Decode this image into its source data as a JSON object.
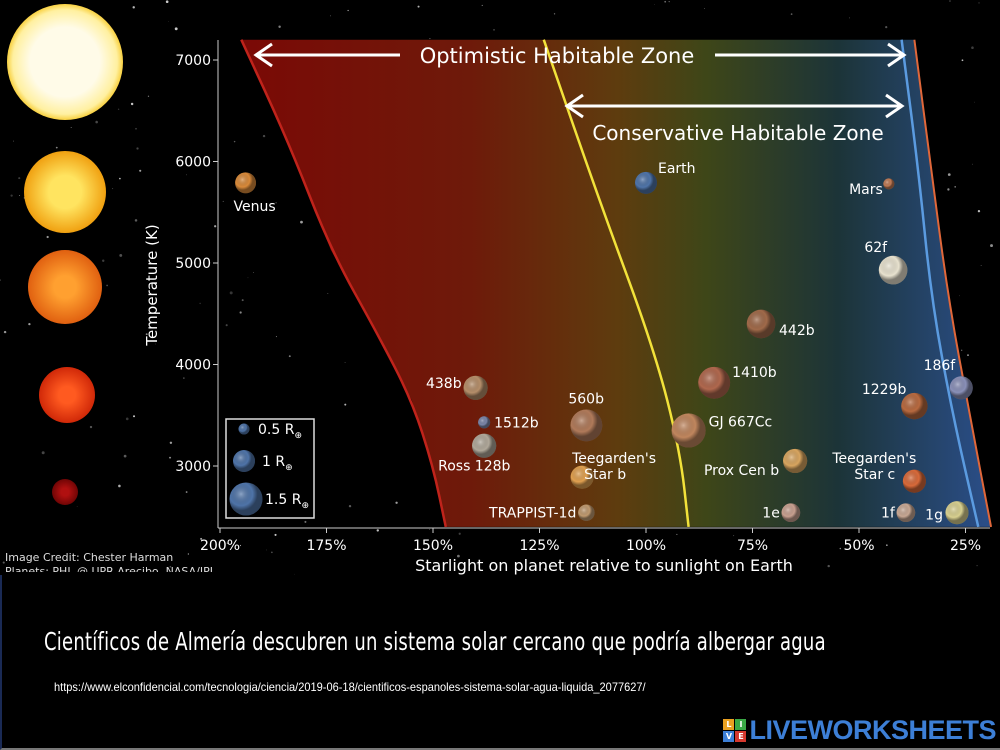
{
  "chart_data": {
    "type": "scatter",
    "xlabel": "Starlight on planet relative to sunlight on Earth",
    "ylabel": "Temperature (K)",
    "x_ticks": [
      "200%",
      "175%",
      "150%",
      "125%",
      "100%",
      "75%",
      "50%",
      "25%"
    ],
    "x_tick_values": [
      200,
      175,
      150,
      125,
      100,
      75,
      50,
      25
    ],
    "y_ticks": [
      "3000",
      "4000",
      "5000",
      "6000",
      "7000"
    ],
    "y_tick_values": [
      3000,
      4000,
      5000,
      6000,
      7000
    ],
    "xlim": [
      200,
      20
    ],
    "ylim": [
      2400,
      7200
    ],
    "x_reversed": true,
    "grid": false,
    "zones": {
      "optimistic_label": "Optimistic Habitable Zone",
      "conservative_label": "Conservative Habitable Zone",
      "optimistic_inner": [
        [
          195,
          7200
        ],
        [
          184,
          6200
        ],
        [
          174,
          5130
        ],
        [
          163,
          4300
        ],
        [
          155,
          3650
        ],
        [
          150,
          3000
        ],
        [
          147,
          2400
        ]
      ],
      "conservative_inner": [
        [
          124,
          7200
        ],
        [
          111,
          5620
        ],
        [
          98,
          4140
        ],
        [
          92,
          3150
        ],
        [
          90,
          2400
        ]
      ],
      "conservative_outer": [
        [
          40,
          7200
        ],
        [
          36,
          5900
        ],
        [
          33,
          4640
        ],
        [
          28,
          3500
        ],
        [
          22,
          2400
        ]
      ],
      "optimistic_outer": [
        [
          37,
          7200
        ],
        [
          33,
          5900
        ],
        [
          29,
          4640
        ],
        [
          24,
          3500
        ],
        [
          19,
          2400
        ]
      ],
      "colors": {
        "optimistic_inner": "#c0231b",
        "conservative_inner": "#f2e23a",
        "conservative_outer": "#5b9be0",
        "optimistic_outer": "#e0673a"
      }
    },
    "legend": {
      "placement": "bottom-left",
      "entries": [
        {
          "label": "0.5 R",
          "radius": 0.5
        },
        {
          "label": "1 R",
          "radius": 1
        },
        {
          "label": "1.5 R",
          "radius": 1.5
        }
      ],
      "subscript": "⊕"
    },
    "points": [
      {
        "name": "Venus",
        "x": 194,
        "y": 5790,
        "radius": 0.95,
        "color": "#d98a3a"
      },
      {
        "name": "Earth",
        "x": 100,
        "y": 5790,
        "radius": 1.0,
        "color": "#4f74a8"
      },
      {
        "name": "Mars",
        "x": 43,
        "y": 5780,
        "radius": 0.5,
        "color": "#c07a55"
      },
      {
        "name": "62f",
        "x": 42,
        "y": 4930,
        "radius": 1.3,
        "color": "#e8e2cf"
      },
      {
        "name": "442b",
        "x": 73,
        "y": 4400,
        "radius": 1.3,
        "color": "#a06a4a"
      },
      {
        "name": "1410b",
        "x": 84,
        "y": 3820,
        "radius": 1.45,
        "color": "#b0684e"
      },
      {
        "name": "186f",
        "x": 26,
        "y": 3770,
        "radius": 1.05,
        "color": "#8a90b8"
      },
      {
        "name": "1229b",
        "x": 37,
        "y": 3590,
        "radius": 1.2,
        "color": "#b86a40"
      },
      {
        "name": "438b",
        "x": 140,
        "y": 3770,
        "radius": 1.1,
        "color": "#b58e6a"
      },
      {
        "name": "1512b",
        "x": 138,
        "y": 3430,
        "radius": 0.55,
        "color": "#7a85a8"
      },
      {
        "name": "560b",
        "x": 114,
        "y": 3400,
        "radius": 1.45,
        "color": "#b07a5a"
      },
      {
        "name": "GJ 667Cc",
        "x": 90,
        "y": 3350,
        "radius": 1.55,
        "color": "#c0865e"
      },
      {
        "name": "Ross 128b",
        "x": 138,
        "y": 3200,
        "radius": 1.1,
        "color": "#b0a89a"
      },
      {
        "name": "Prox Cen b",
        "x": 65,
        "y": 3050,
        "radius": 1.1,
        "color": "#d8a560"
      },
      {
        "name": "Teegarden's Star b",
        "x": 115,
        "y": 2890,
        "radius": 1.05,
        "color": "#e0a050"
      },
      {
        "name": "Teegarden's Star c",
        "x": 37,
        "y": 2850,
        "radius": 1.05,
        "color": "#d86a3a"
      },
      {
        "name": "TRAPPIST-1d",
        "x": 114,
        "y": 2540,
        "radius": 0.75,
        "color": "#c09a70"
      },
      {
        "name": "1e",
        "x": 66,
        "y": 2540,
        "radius": 0.85,
        "color": "#c8a090"
      },
      {
        "name": "1f",
        "x": 39,
        "y": 2540,
        "radius": 0.85,
        "color": "#c8a894"
      },
      {
        "name": "1g",
        "x": 27,
        "y": 2540,
        "radius": 1.05,
        "color": "#d8d090"
      }
    ]
  },
  "credits": {
    "line1": "Image Credit: Chester Harman",
    "line2": "Planets: PHL @ UPR Arecibo, NASA/JPL"
  },
  "headline": "Científicos de Almería descubren un sistema solar cercano que podría albergar agua",
  "url": "https://www.elconfidencial.com/tecnologia/ciencia/2019-06-18/cientificos-espanoles-sistema-solar-agua-liquida_2077627/",
  "brand": {
    "logo_letters": [
      "L",
      "I",
      "V",
      "E"
    ],
    "name": "LIVEWORKSHEETS",
    "color": "#3d7fd6"
  }
}
